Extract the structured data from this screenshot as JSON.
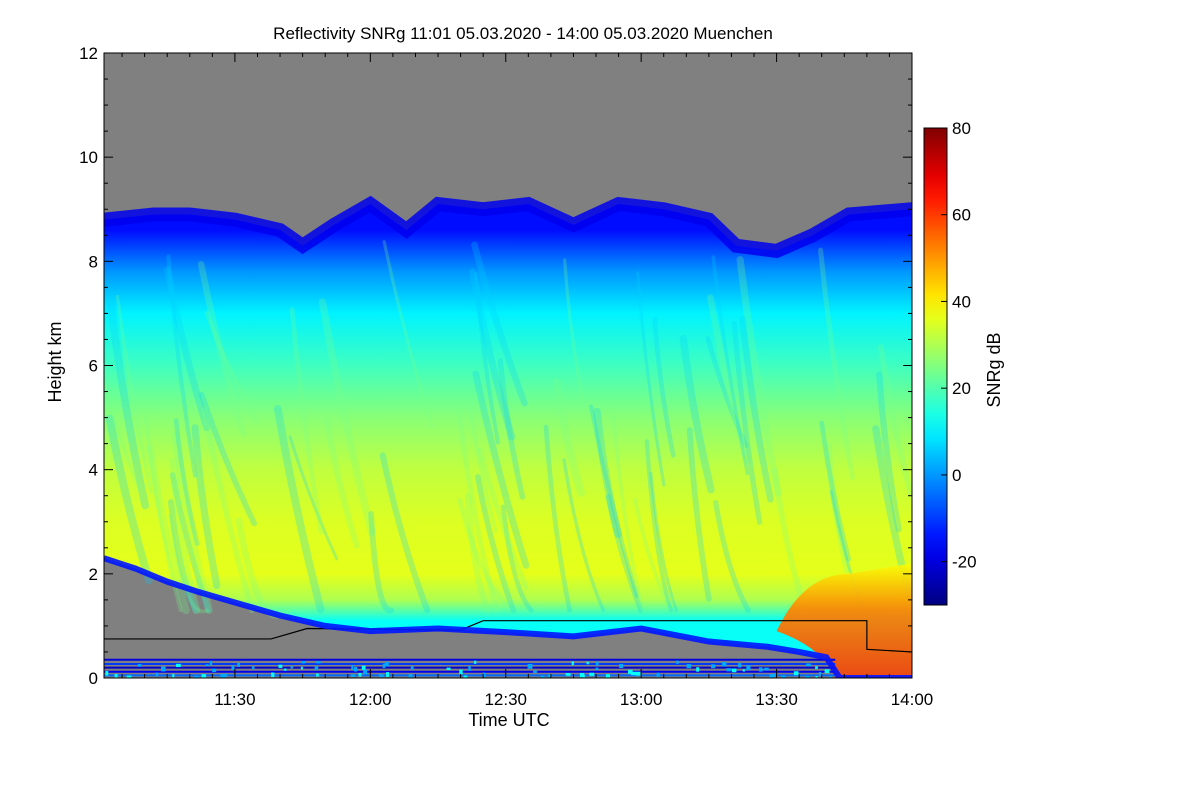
{
  "chart_data": {
    "type": "heatmap",
    "title": "Reflectivity SNRg   11:01 05.03.2020 - 14:00 05.03.2020 Muenchen",
    "xlabel": "Time UTC",
    "ylabel": "Height km",
    "xlim_minutes": [
      661,
      840
    ],
    "ylim": [
      0,
      12
    ],
    "x_ticks": [
      {
        "value": 690,
        "label": "11:30"
      },
      {
        "value": 720,
        "label": "12:00"
      },
      {
        "value": 750,
        "label": "12:30"
      },
      {
        "value": 780,
        "label": "13:00"
      },
      {
        "value": 810,
        "label": "13:30"
      },
      {
        "value": 840,
        "label": "14:00"
      }
    ],
    "y_ticks": [
      {
        "value": 0,
        "label": "0"
      },
      {
        "value": 2,
        "label": "2"
      },
      {
        "value": 4,
        "label": "4"
      },
      {
        "value": 6,
        "label": "6"
      },
      {
        "value": 8,
        "label": "8"
      },
      {
        "value": 10,
        "label": "10"
      },
      {
        "value": 12,
        "label": "12"
      }
    ],
    "colorbar": {
      "label": "SNRg dB",
      "range": [
        -30,
        80
      ],
      "ticks": [
        {
          "value": -20,
          "label": "-20"
        },
        {
          "value": 0,
          "label": "0"
        },
        {
          "value": 20,
          "label": "20"
        },
        {
          "value": 40,
          "label": "40"
        },
        {
          "value": 60,
          "label": "60"
        },
        {
          "value": 80,
          "label": "80"
        }
      ]
    },
    "no_signal_color": "#808080",
    "cloud_top_km": [
      {
        "t": 661,
        "h": 8.8
      },
      {
        "t": 672,
        "h": 8.9
      },
      {
        "t": 680,
        "h": 8.9
      },
      {
        "t": 690,
        "h": 8.8
      },
      {
        "t": 700,
        "h": 8.6
      },
      {
        "t": 705,
        "h": 8.3
      },
      {
        "t": 712,
        "h": 8.7
      },
      {
        "t": 720,
        "h": 9.1
      },
      {
        "t": 728,
        "h": 8.6
      },
      {
        "t": 735,
        "h": 9.1
      },
      {
        "t": 745,
        "h": 9.0
      },
      {
        "t": 755,
        "h": 9.1
      },
      {
        "t": 765,
        "h": 8.7
      },
      {
        "t": 775,
        "h": 9.1
      },
      {
        "t": 785,
        "h": 9.0
      },
      {
        "t": 795,
        "h": 8.8
      },
      {
        "t": 801,
        "h": 8.3
      },
      {
        "t": 810,
        "h": 8.2
      },
      {
        "t": 818,
        "h": 8.5
      },
      {
        "t": 826,
        "h": 8.9
      },
      {
        "t": 840,
        "h": 9.0
      }
    ],
    "cloud_base_km": [
      {
        "t": 661,
        "h": 2.3
      },
      {
        "t": 668,
        "h": 2.1
      },
      {
        "t": 675,
        "h": 1.85
      },
      {
        "t": 682,
        "h": 1.65
      },
      {
        "t": 690,
        "h": 1.45
      },
      {
        "t": 700,
        "h": 1.2
      },
      {
        "t": 710,
        "h": 1.0
      },
      {
        "t": 720,
        "h": 0.9
      },
      {
        "t": 735,
        "h": 0.95
      },
      {
        "t": 750,
        "h": 0.88
      },
      {
        "t": 765,
        "h": 0.8
      },
      {
        "t": 780,
        "h": 0.95
      },
      {
        "t": 795,
        "h": 0.7
      },
      {
        "t": 808,
        "h": 0.6
      },
      {
        "t": 815,
        "h": 0.5
      },
      {
        "t": 821,
        "h": 0.4
      },
      {
        "t": 824,
        "h": 0.0
      },
      {
        "t": 840,
        "h": 0.0
      }
    ],
    "reflectivity_profile": [
      {
        "h": 8.6,
        "snr": -15
      },
      {
        "h": 7.8,
        "snr": 0
      },
      {
        "h": 7.0,
        "snr": 10
      },
      {
        "h": 6.0,
        "snr": 18
      },
      {
        "h": 5.0,
        "snr": 26
      },
      {
        "h": 4.0,
        "snr": 32
      },
      {
        "h": 3.0,
        "snr": 35
      },
      {
        "h": 2.0,
        "snr": 36
      },
      {
        "h": 1.5,
        "snr": 30
      },
      {
        "h": 1.1,
        "snr": 12
      }
    ],
    "precip_core": {
      "t_start": 822,
      "t_end": 840,
      "h_top": 2.0,
      "snr_max": 60
    },
    "mixing_layer_line_km": [
      {
        "t": 661,
        "h": 0.75
      },
      {
        "t": 698,
        "h": 0.75
      },
      {
        "t": 706,
        "h": 0.95
      },
      {
        "t": 740,
        "h": 0.92
      },
      {
        "t": 745,
        "h": 1.1
      },
      {
        "t": 824,
        "h": 1.1
      },
      {
        "t": 830,
        "h": 1.1
      },
      {
        "t": 830,
        "h": 0.55
      },
      {
        "t": 840,
        "h": 0.5
      }
    ]
  }
}
